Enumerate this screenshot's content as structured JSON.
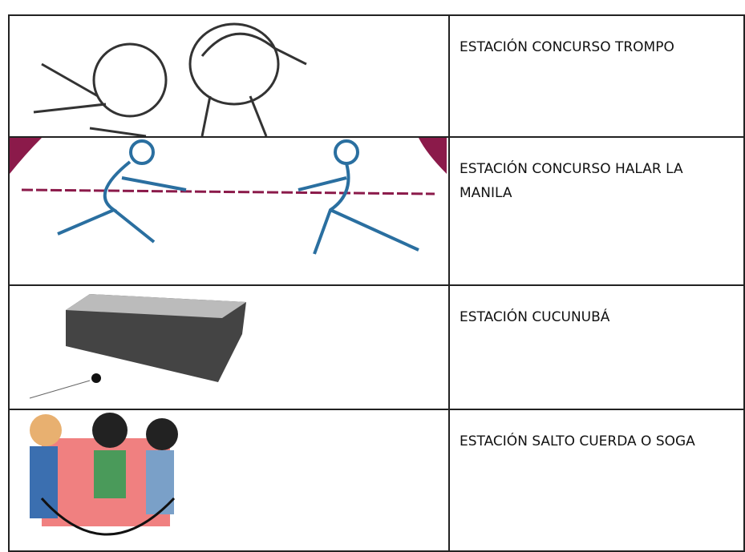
{
  "table": {
    "rows": [
      "ESTACIÓN CONCURSO TROMPO",
      "ESTACIÓN CONCURSO HALAR LA MANILA",
      "ESTACIÓN CUCUNUBÁ",
      "ESTACIÓN SALTO CUERDA O SOGA"
    ]
  }
}
